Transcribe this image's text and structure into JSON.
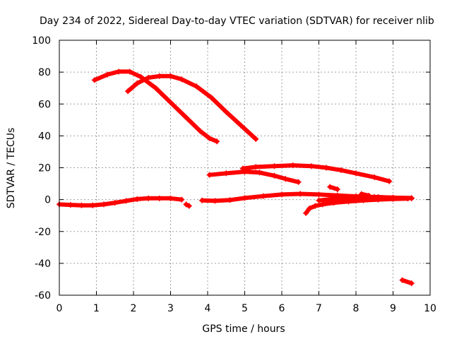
{
  "chart_data": {
    "type": "scatter",
    "title": "Day 234 of 2022, Sidereal Day-to-day VTEC variation (SDTVAR) for receiver nlib",
    "xlabel": "GPS time / hours",
    "ylabel": "SDTVAR / TECUs",
    "xlim": [
      0,
      10
    ],
    "ylim": [
      -60,
      100
    ],
    "xticks": [
      "0",
      "1",
      "2",
      "3",
      "4",
      "5",
      "6",
      "7",
      "8",
      "9",
      "10"
    ],
    "yticks": [
      "-60",
      "-40",
      "-20",
      "0",
      "20",
      "40",
      "60",
      "80",
      "100"
    ],
    "grid": true,
    "series_color": "#ff0000",
    "series": [
      {
        "x": [
          0.95,
          1.3,
          1.6,
          1.9,
          2.2,
          2.6,
          3.0,
          3.4,
          3.8,
          4.05,
          4.25
        ],
        "y": [
          75,
          78.5,
          80.3,
          80.3,
          77,
          70,
          61,
          52,
          43,
          38.5,
          36.5
        ]
      },
      {
        "x": [
          1.85,
          2.1,
          2.4,
          2.7,
          3.0,
          3.3,
          3.7,
          4.1,
          4.5,
          4.9,
          5.3
        ],
        "y": [
          68,
          73,
          76.5,
          77.5,
          77.5,
          75.5,
          71,
          64,
          55,
          46.5,
          38
        ]
      },
      {
        "x": [
          4.05,
          4.5,
          5.0,
          5.4,
          5.8,
          6.1,
          6.45
        ],
        "y": [
          15.5,
          16.5,
          17.5,
          17,
          15,
          13,
          11
        ]
      },
      {
        "x": [
          4.95,
          5.3,
          5.8,
          6.3,
          6.8,
          7.2,
          7.6,
          8.0,
          8.5,
          8.9
        ],
        "y": [
          19.5,
          20.5,
          21,
          21.5,
          21,
          20,
          18.5,
          16.5,
          14,
          11.5
        ]
      },
      {
        "x": [
          0.0,
          0.3,
          0.6,
          0.9,
          1.2,
          1.5,
          1.8,
          2.1,
          2.4,
          2.7,
          3.0,
          3.3
        ],
        "y": [
          -3,
          -3.3,
          -3.6,
          -3.6,
          -3,
          -2,
          -0.8,
          0.3,
          0.8,
          0.8,
          0.8,
          0
        ]
      },
      {
        "x": [
          3.42,
          3.5
        ],
        "y": [
          -3,
          -4
        ]
      },
      {
        "x": [
          3.85,
          4.2,
          4.6,
          5.0,
          5.5,
          6.0,
          6.5,
          7.0,
          7.5,
          8.0,
          8.5,
          9.0,
          9.5
        ],
        "y": [
          -0.5,
          -0.8,
          -0.3,
          1,
          2.2,
          3.2,
          3.6,
          3.2,
          2.6,
          2.0,
          1.6,
          1.2,
          1
        ]
      },
      {
        "x": [
          6.65,
          6.75,
          6.9,
          7.1,
          7.4,
          7.8,
          8.2,
          8.6,
          9.0,
          9.4
        ],
        "y": [
          -8.5,
          -5.5,
          -4,
          -3,
          -2,
          -1.2,
          -0.5,
          0,
          0.4,
          0.6
        ]
      },
      {
        "x": [
          7.0,
          7.4,
          7.8,
          8.2,
          8.6,
          9.0,
          9.5
        ],
        "y": [
          -0.5,
          0.5,
          1.4,
          1.8,
          1.6,
          1.2,
          0.8
        ]
      },
      {
        "x": [
          7.3,
          7.5
        ],
        "y": [
          8,
          6.5
        ]
      },
      {
        "x": [
          8.15,
          8.35
        ],
        "y": [
          3.5,
          2.5
        ]
      },
      {
        "x": [
          9.25,
          9.5
        ],
        "y": [
          -50.5,
          -52.5
        ]
      }
    ]
  }
}
